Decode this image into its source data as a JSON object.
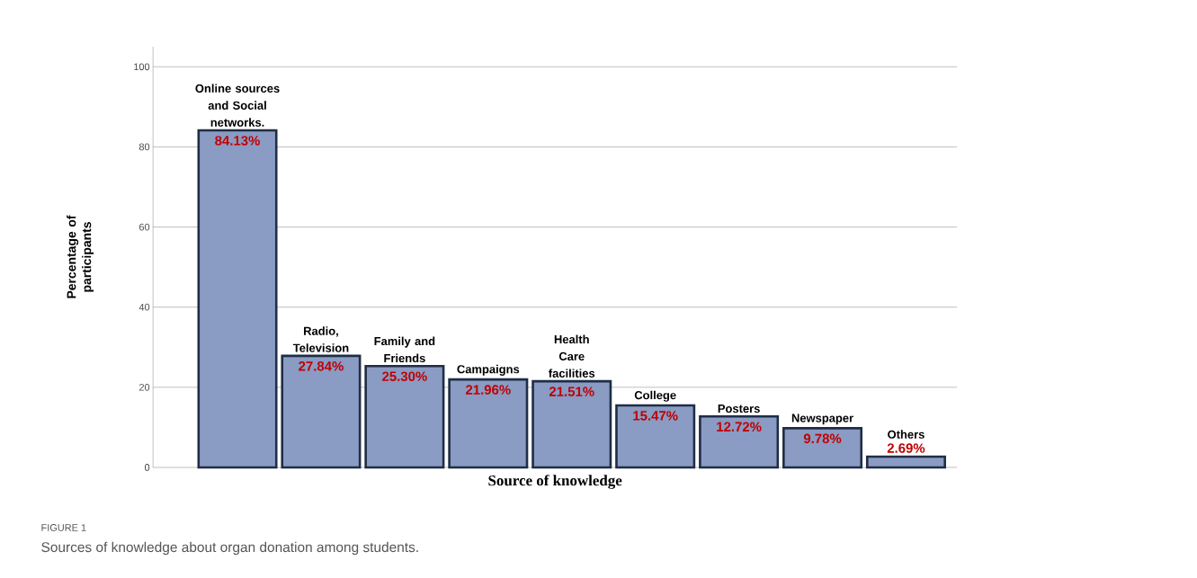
{
  "chart_data": {
    "type": "bar",
    "xlabel": "Source of knowledge",
    "ylabel": "Percentage of participants",
    "annotations": [
      "FIGURE 1",
      "Sources of knowledge about organ donation among students."
    ],
    "categories": [
      "Online sources and Social networks.",
      "Radio, Television",
      "Family and Friends",
      "Campaigns",
      "Health Care facilities",
      "College",
      "Posters",
      "Newspaper",
      "Others"
    ],
    "values": [
      84.13,
      27.84,
      25.3,
      21.96,
      21.51,
      15.47,
      12.72,
      9.78,
      2.69
    ],
    "value_labels": [
      "84.13%",
      "27.84%",
      "25.30%",
      "21.96%",
      "21.51%",
      "15.47%",
      "12.72%",
      "9.78%",
      "2.69%"
    ],
    "color": "#8a9bc4",
    "ylim": [
      0,
      105
    ],
    "yticks": [
      0,
      20,
      40,
      60,
      80,
      100
    ],
    "grid": "y"
  }
}
